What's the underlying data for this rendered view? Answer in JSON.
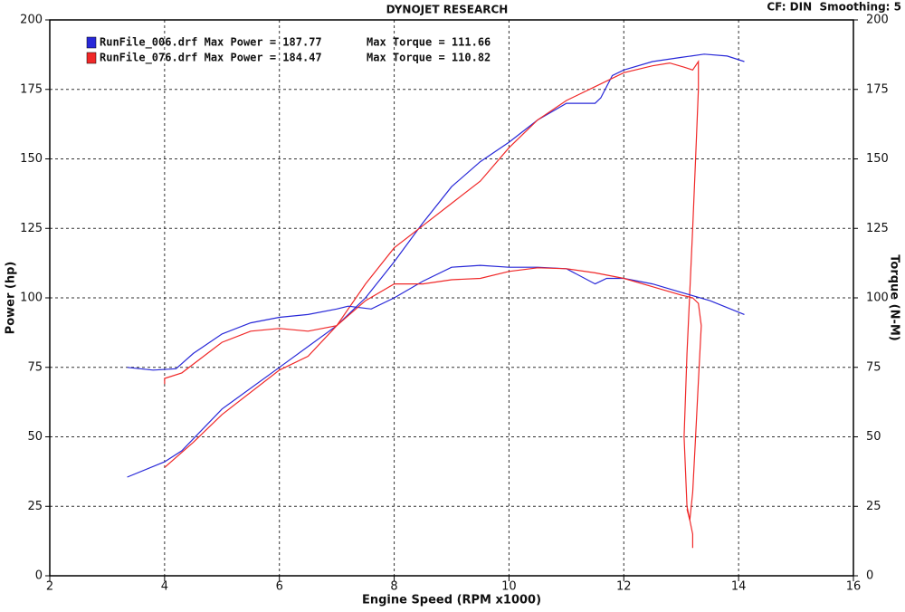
{
  "chart_data": {
    "type": "line",
    "title": "DYNOJET RESEARCH",
    "subtitle": "CF: DIN  Smoothing: 5",
    "x_label": "Engine Speed (RPM x1000)",
    "y_label": "Power (hp)",
    "y2_label": "Torque (N-M)",
    "xlim": [
      2,
      16
    ],
    "xticks": [
      2,
      4,
      6,
      8,
      10,
      12,
      14,
      16
    ],
    "ylim": [
      0,
      200
    ],
    "yticks": [
      0,
      25,
      50,
      75,
      100,
      125,
      150,
      175,
      200
    ],
    "y2lim": [
      0,
      200
    ],
    "y2ticks": [
      0,
      25,
      50,
      75,
      100,
      125,
      150,
      175,
      200
    ],
    "grid": true,
    "legend": [
      {
        "label": "RunFile_006.drf Max Power = 187.77",
        "torque_label": "Max Torque = 111.66",
        "color": "#2828d8"
      },
      {
        "label": "RunFile_076.drf Max Power = 184.47",
        "torque_label": "Max Torque = 110.82",
        "color": "#f02828"
      }
    ],
    "series": [
      {
        "color": "#2828d8",
        "x": [
          3.35,
          4,
          4.3,
          5,
          6,
          7,
          7.5,
          8,
          8.5,
          9,
          9.5,
          10,
          10.5,
          11,
          11.5,
          11.6,
          11.8,
          12,
          12.5,
          13,
          13.4,
          13.8,
          14.1
        ],
        "values": [
          35.5,
          41,
          45,
          60,
          75,
          90,
          100,
          113,
          127,
          140,
          149,
          156,
          164,
          170,
          170,
          172,
          180,
          182,
          185,
          186.5,
          187.7,
          187,
          185
        ]
      },
      {
        "color": "#f02828",
        "x": [
          4,
          4.5,
          5,
          6,
          6.5,
          7,
          7.5,
          8,
          8.5,
          9,
          9.5,
          10,
          10.5,
          11,
          11.5,
          12,
          12.5,
          12.8,
          13.05,
          13.2,
          13.3,
          13.3,
          13.25,
          13.2,
          13.15,
          13.1,
          13.05,
          13.1,
          13.2,
          13.2
        ],
        "values": [
          39,
          48,
          58,
          74,
          79,
          90,
          105,
          118,
          126,
          134,
          142,
          154,
          164,
          171,
          176,
          181,
          183.5,
          184.5,
          183,
          182,
          185,
          175,
          150,
          125,
          102,
          80,
          50,
          25,
          15,
          10
        ]
      },
      {
        "color": "#2828d8",
        "axis": "y2",
        "x": [
          3.35,
          3.8,
          4.2,
          4.5,
          5,
          5.5,
          6,
          6.5,
          7,
          7.2,
          7.6,
          8,
          8.5,
          9,
          9.5,
          10,
          10.5,
          11,
          11.5,
          11.7,
          12,
          12.5,
          13,
          13.5,
          14.1
        ],
        "values": [
          75,
          74,
          74.5,
          80,
          87,
          91,
          93,
          94,
          96,
          97,
          96,
          100,
          106,
          111,
          111.7,
          111,
          111,
          110.5,
          105,
          107,
          107,
          105,
          102,
          99,
          94
        ]
      },
      {
        "color": "#f02828",
        "axis": "y2",
        "x": [
          4,
          4,
          4.3,
          5,
          5.5,
          6,
          6.5,
          7,
          7.5,
          8,
          8.5,
          9,
          9.5,
          10,
          10.5,
          11,
          11.5,
          12,
          12.5,
          13,
          13.2,
          13.3,
          13.35,
          13.3,
          13.25,
          13.2,
          13.15,
          13.1
        ],
        "values": [
          69,
          71,
          73,
          84,
          88,
          89,
          88,
          90,
          99,
          105,
          105,
          106.5,
          107,
          109.5,
          110.8,
          110.5,
          109,
          107,
          104,
          101,
          100,
          98,
          90,
          70,
          50,
          30,
          20,
          24
        ]
      }
    ]
  }
}
